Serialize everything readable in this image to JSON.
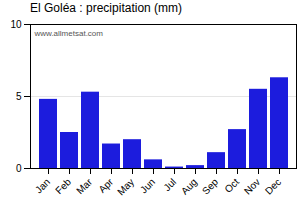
{
  "chart_data": {
    "type": "bar",
    "title": "El Goléa : precipitation (mm)",
    "categories": [
      "Jan",
      "Feb",
      "Mar",
      "Apr",
      "May",
      "Jun",
      "Jul",
      "Aug",
      "Sep",
      "Oct",
      "Nov",
      "Dec"
    ],
    "values": [
      4.8,
      2.5,
      5.3,
      1.7,
      2.0,
      0.6,
      0.1,
      0.2,
      1.1,
      2.7,
      5.5,
      6.3
    ],
    "color": "#1c1cdd",
    "ylim": [
      0,
      10
    ],
    "yticks": [
      0,
      5,
      10
    ],
    "grid": true,
    "annotations": [
      "www.allmetsat.com"
    ]
  }
}
